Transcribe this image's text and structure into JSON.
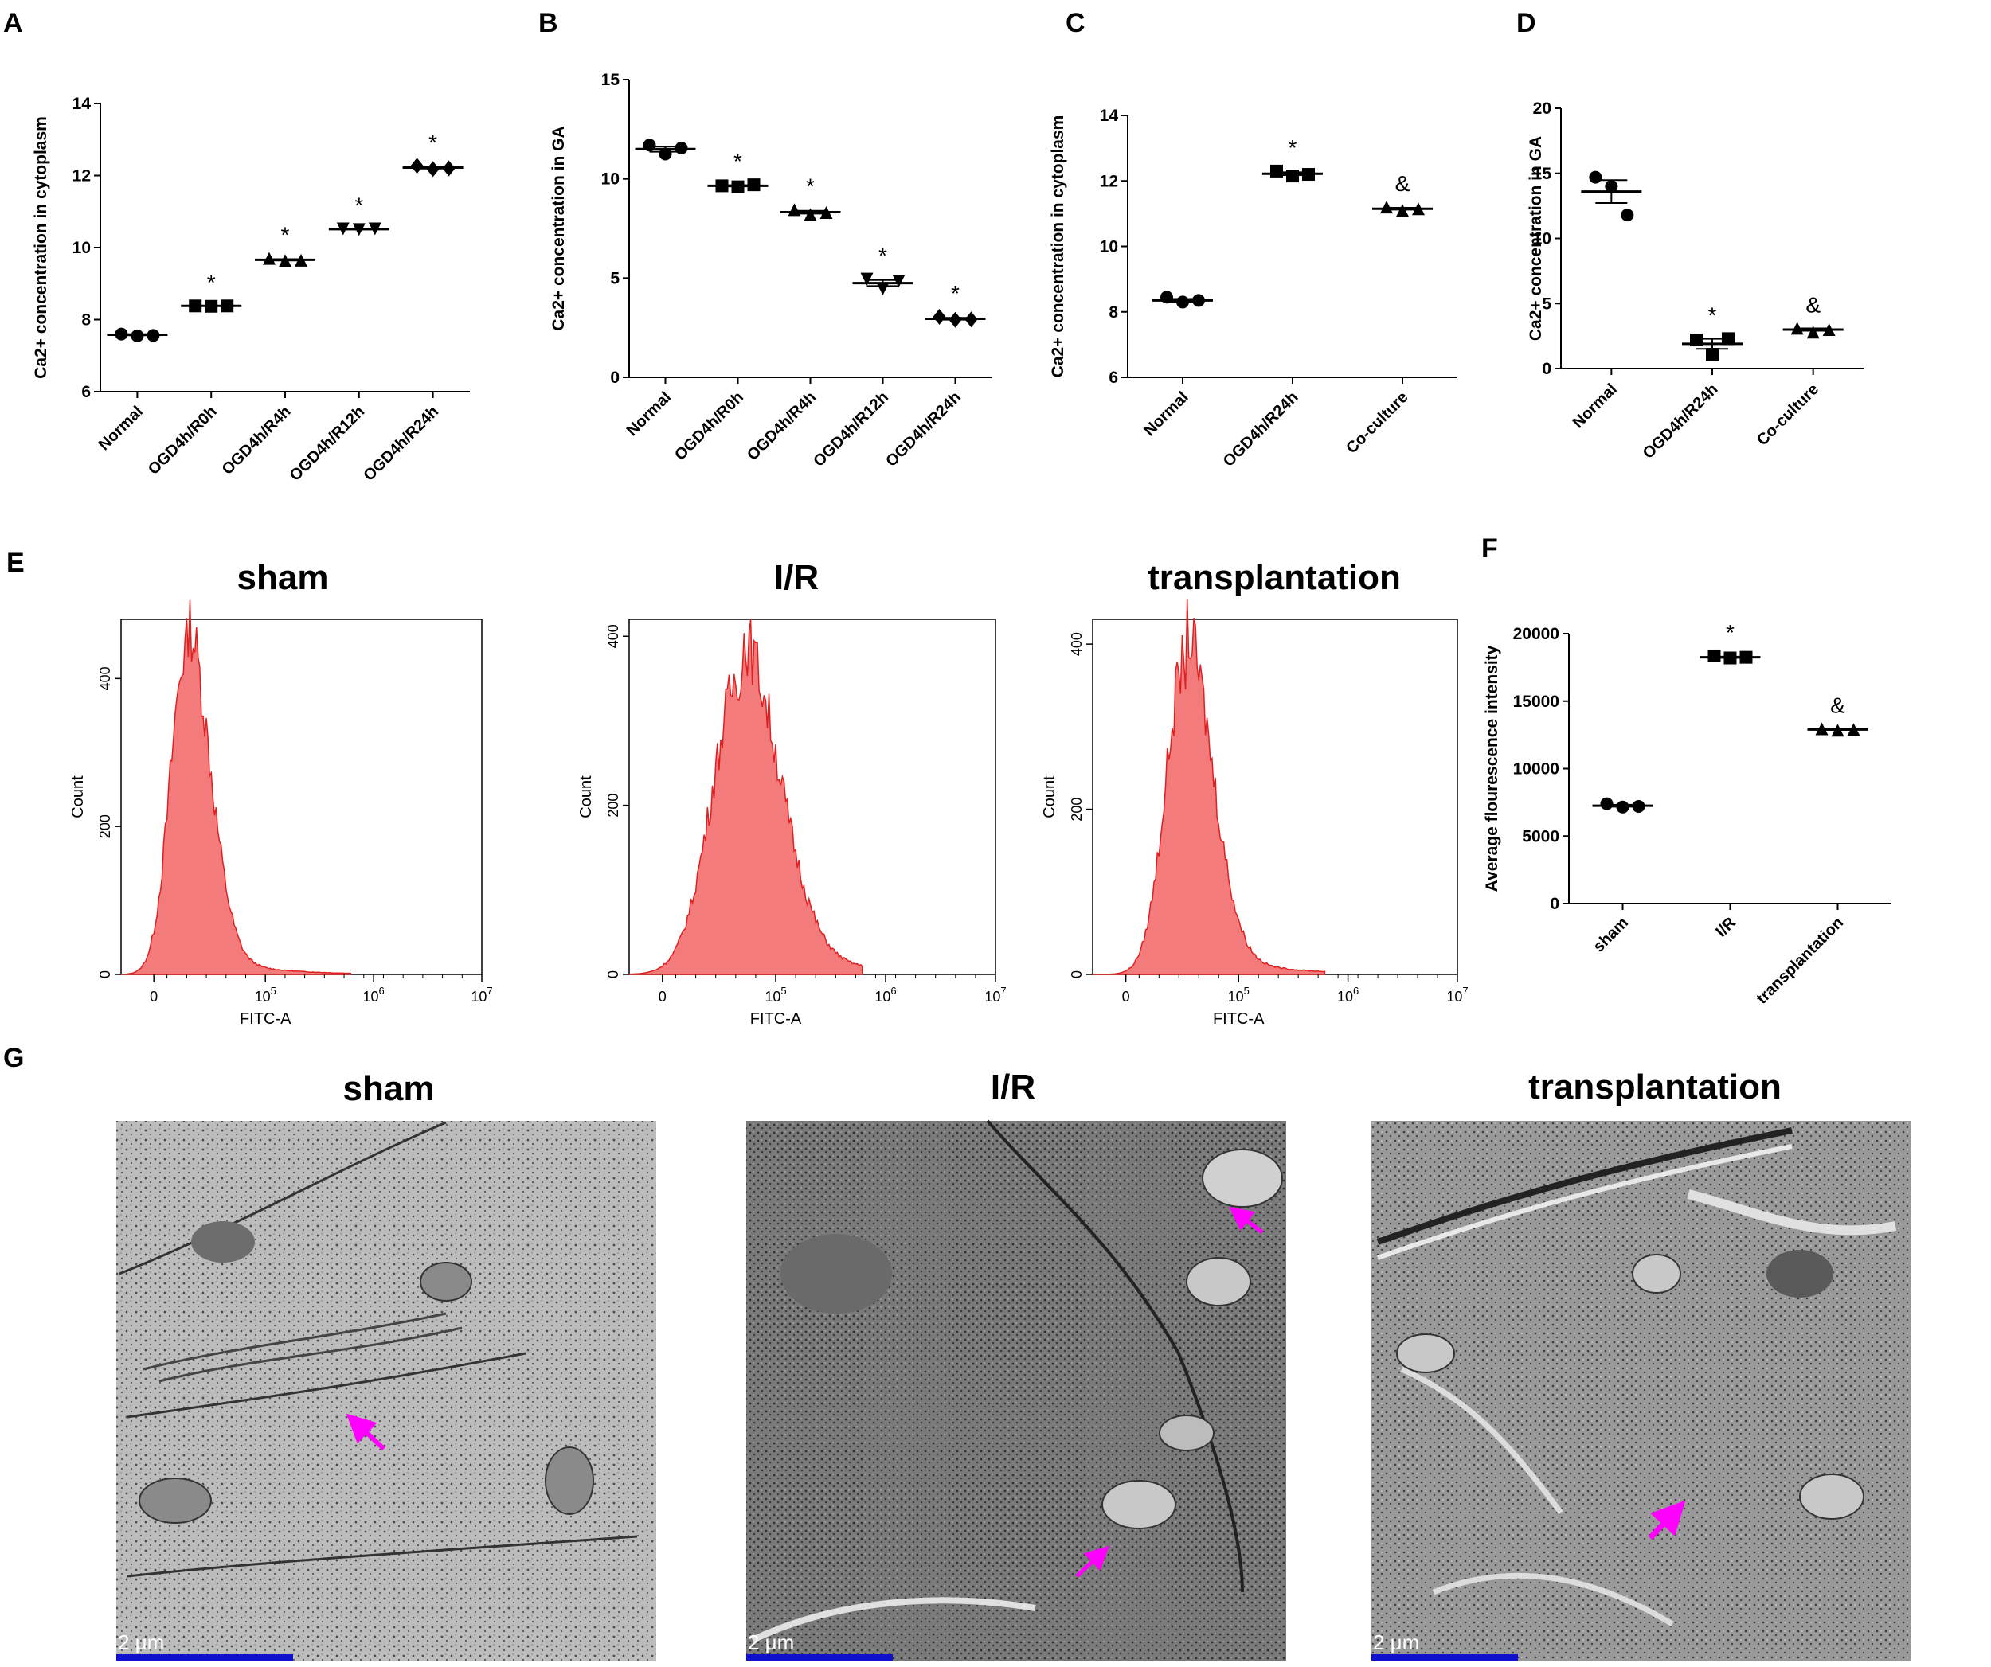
{
  "panel_labels": [
    "A",
    "B",
    "C",
    "D",
    "E",
    "F",
    "G"
  ],
  "markers": {
    "star": "*",
    "amp": "&"
  },
  "colors": {
    "hist_fill": "#f37b7b",
    "hist_line": "#e02020",
    "arrow": "#ff00ff",
    "scalebar": "#1010d0"
  },
  "chart_data": [
    {
      "id": "A",
      "type": "scatter",
      "ylabel": "Ca2+ concentration in cytoplasm",
      "ylim": [
        6,
        14
      ],
      "yticks": [
        6,
        8,
        10,
        12,
        14
      ],
      "categories": [
        "Normal",
        "OGD4h/R0h",
        "OGD4h/R4h",
        "OGD4h/R12h",
        "OGD4h/R24h"
      ],
      "markers": [
        "circle",
        "square",
        "triangle",
        "triangle-down",
        "diamond"
      ],
      "points": [
        [
          7.6,
          7.55,
          7.56
        ],
        [
          8.38,
          8.37,
          8.38
        ],
        [
          9.7,
          9.64,
          9.65
        ],
        [
          10.52,
          10.5,
          10.52
        ],
        [
          12.27,
          12.18,
          12.2
        ]
      ],
      "means": [
        7.58,
        8.38,
        9.66,
        10.51,
        12.22
      ],
      "annotations": [
        "",
        "*",
        "*",
        "*",
        "*"
      ]
    },
    {
      "id": "B",
      "type": "scatter",
      "ylabel": "Ca2+ concentration in GA",
      "ylim": [
        0,
        15
      ],
      "yticks": [
        0,
        5,
        10,
        15
      ],
      "categories": [
        "Normal",
        "OGD4h/R0h",
        "OGD4h/R4h",
        "OGD4h/R12h",
        "OGD4h/R24h"
      ],
      "markers": [
        "circle",
        "square",
        "triangle",
        "triangle-down",
        "diamond"
      ],
      "points": [
        [
          11.7,
          11.25,
          11.55
        ],
        [
          9.65,
          9.6,
          9.7
        ],
        [
          8.45,
          8.2,
          8.3
        ],
        [
          4.95,
          4.45,
          4.85
        ],
        [
          3.05,
          2.9,
          2.92
        ]
      ],
      "means": [
        11.5,
        9.65,
        8.32,
        4.75,
        2.95
      ],
      "annotations": [
        "",
        "*",
        "*",
        "*",
        "*"
      ]
    },
    {
      "id": "C",
      "type": "scatter",
      "ylabel": "Ca2+ concentration in cytoplasm",
      "ylim": [
        6,
        14
      ],
      "yticks": [
        6,
        8,
        10,
        12,
        14
      ],
      "categories": [
        "Normal",
        "OGD4h/R24h",
        "Co-culture"
      ],
      "markers": [
        "circle",
        "square",
        "triangle"
      ],
      "points": [
        [
          8.45,
          8.3,
          8.35
        ],
        [
          12.3,
          12.15,
          12.2
        ],
        [
          11.2,
          11.1,
          11.15
        ]
      ],
      "means": [
        8.35,
        12.22,
        11.15
      ],
      "annotations": [
        "",
        "*",
        "&"
      ]
    },
    {
      "id": "D",
      "type": "scatter",
      "ylabel": "Ca2+ concentration in GA",
      "ylim": [
        0,
        20
      ],
      "yticks": [
        0,
        5,
        10,
        15,
        20
      ],
      "categories": [
        "Normal",
        "OGD4h/R24h",
        "Co-culture"
      ],
      "markers": [
        "circle",
        "square",
        "triangle"
      ],
      "points": [
        [
          14.7,
          14.0,
          11.8
        ],
        [
          2.2,
          1.1,
          2.3
        ],
        [
          3.1,
          2.8,
          3.0
        ]
      ],
      "means": [
        13.6,
        1.9,
        3.0
      ],
      "annotations": [
        "",
        "*",
        "&"
      ]
    },
    {
      "id": "F",
      "type": "scatter",
      "ylabel": "Average flourescence intensity",
      "ylim": [
        0,
        20000
      ],
      "yticks": [
        0,
        5000,
        10000,
        15000,
        20000
      ],
      "categories": [
        "sham",
        "I/R",
        "transplantation"
      ],
      "markers": [
        "circle",
        "square",
        "triangle"
      ],
      "points": [
        [
          7400,
          7150,
          7200
        ],
        [
          18350,
          18200,
          18250
        ],
        [
          12950,
          12850,
          12900
        ]
      ],
      "means": [
        7250,
        18250,
        12900
      ],
      "annotations": [
        "",
        "*",
        "&"
      ]
    }
  ],
  "flow_panels": {
    "xlabel": "FITC-A",
    "ylabel": "Count",
    "xtick_labels": [
      "0",
      "10",
      "10",
      "10"
    ],
    "xtick_exps": [
      "",
      "5",
      "6",
      "7"
    ],
    "histograms": [
      {
        "title": "sham",
        "ymax": 480,
        "yticks": [
          "0",
          "200",
          "400"
        ],
        "ytick_values": [
          0,
          200,
          400
        ],
        "peak_x": 10,
        "peak_count": 440,
        "sigma_left": 5,
        "sigma_right": 7,
        "tail": 0.25
      },
      {
        "title": "I/R",
        "ymax": 420,
        "yticks": [
          "0",
          "200",
          "400"
        ],
        "ytick_values": [
          0,
          200,
          400
        ],
        "peak_x": 24,
        "peak_count": 360,
        "sigma_left": 9,
        "sigma_right": 11,
        "tail": 0.3
      },
      {
        "title": "transplantation",
        "ymax": 430,
        "yticks": [
          "0",
          "200",
          "400"
        ],
        "ytick_values": [
          0,
          200,
          400
        ],
        "peak_x": 18,
        "peak_count": 380,
        "sigma_left": 6,
        "sigma_right": 8,
        "tail": 0.28
      }
    ]
  },
  "em_panels": [
    {
      "title": "sham",
      "scale_label": "2 μm"
    },
    {
      "title": "I/R",
      "scale_label": "2 μm"
    },
    {
      "title": "transplantation",
      "scale_label": "2 μm"
    }
  ]
}
